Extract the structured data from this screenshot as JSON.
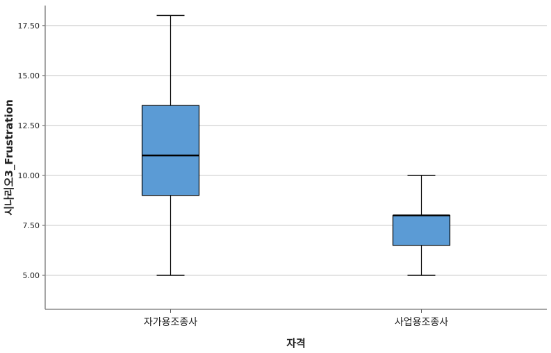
{
  "chart_data": {
    "type": "box",
    "xlabel": "자격",
    "ylabel": "시나리오3_Frustration",
    "categories": [
      "자가용조종사",
      "사업용조종사"
    ],
    "boxes": [
      {
        "category": "자가용조종사",
        "min": 5.0,
        "q1": 9.0,
        "median": 11.0,
        "q3": 13.5,
        "max": 18.0
      },
      {
        "category": "사업용조종사",
        "min": 5.0,
        "q1": 6.5,
        "median": 8.0,
        "q3": 8.0,
        "max": 10.0
      }
    ],
    "ylim": [
      3.3,
      18.5
    ],
    "yticks": [
      "5.00",
      "7.50",
      "10.00",
      "12.50",
      "15.00",
      "17.50"
    ],
    "ytick_values": [
      5.0,
      7.5,
      10.0,
      12.5,
      15.0,
      17.5
    ],
    "grid": true,
    "colors": {
      "box_fill": "#5b9bd5",
      "stroke": "#000000",
      "grid": "#c8c8c8"
    }
  }
}
